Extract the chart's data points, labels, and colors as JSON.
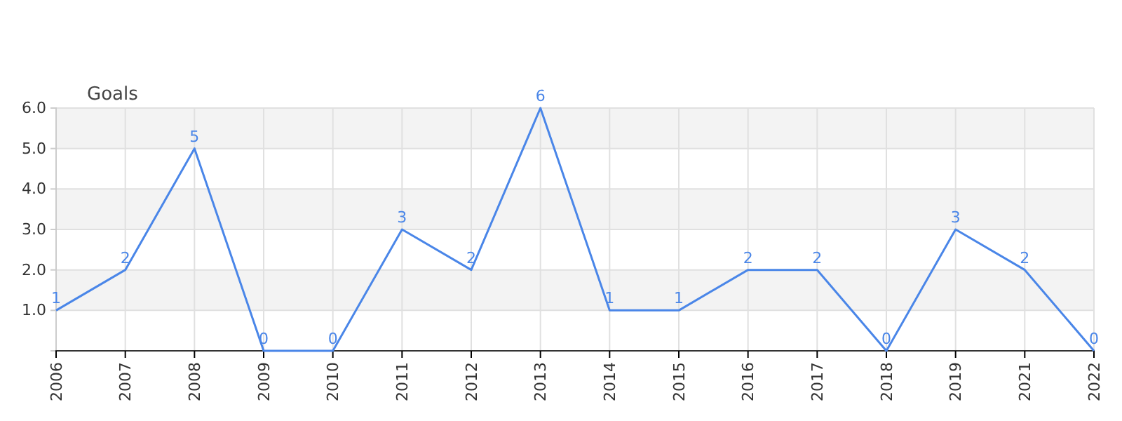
{
  "chart_data": {
    "type": "line",
    "ylabel": "Goals",
    "categories": [
      "2006",
      "2007",
      "2008",
      "2009",
      "2010",
      "2011",
      "2012",
      "2013",
      "2014",
      "2015",
      "2016",
      "2017",
      "2018",
      "2019",
      "2021",
      "2022"
    ],
    "series": [
      {
        "color": "#4a86e8",
        "values": [
          1,
          2,
          5,
          0,
          0,
          3,
          2,
          6,
          1,
          1,
          2,
          2,
          0,
          3,
          2,
          0
        ]
      }
    ],
    "ylim": [
      0,
      6
    ],
    "yticks": [
      {
        "value": 0,
        "label": null
      },
      {
        "value": 1,
        "label": "1.0"
      },
      {
        "value": 2,
        "label": "2.0"
      },
      {
        "value": 3,
        "label": "3.0"
      },
      {
        "value": 4,
        "label": "4.0"
      },
      {
        "value": 5,
        "label": "5.0"
      },
      {
        "value": 6,
        "label": "6.0"
      }
    ],
    "grid": true,
    "data_labels": true,
    "marker": "none",
    "line_style": "solid"
  }
}
